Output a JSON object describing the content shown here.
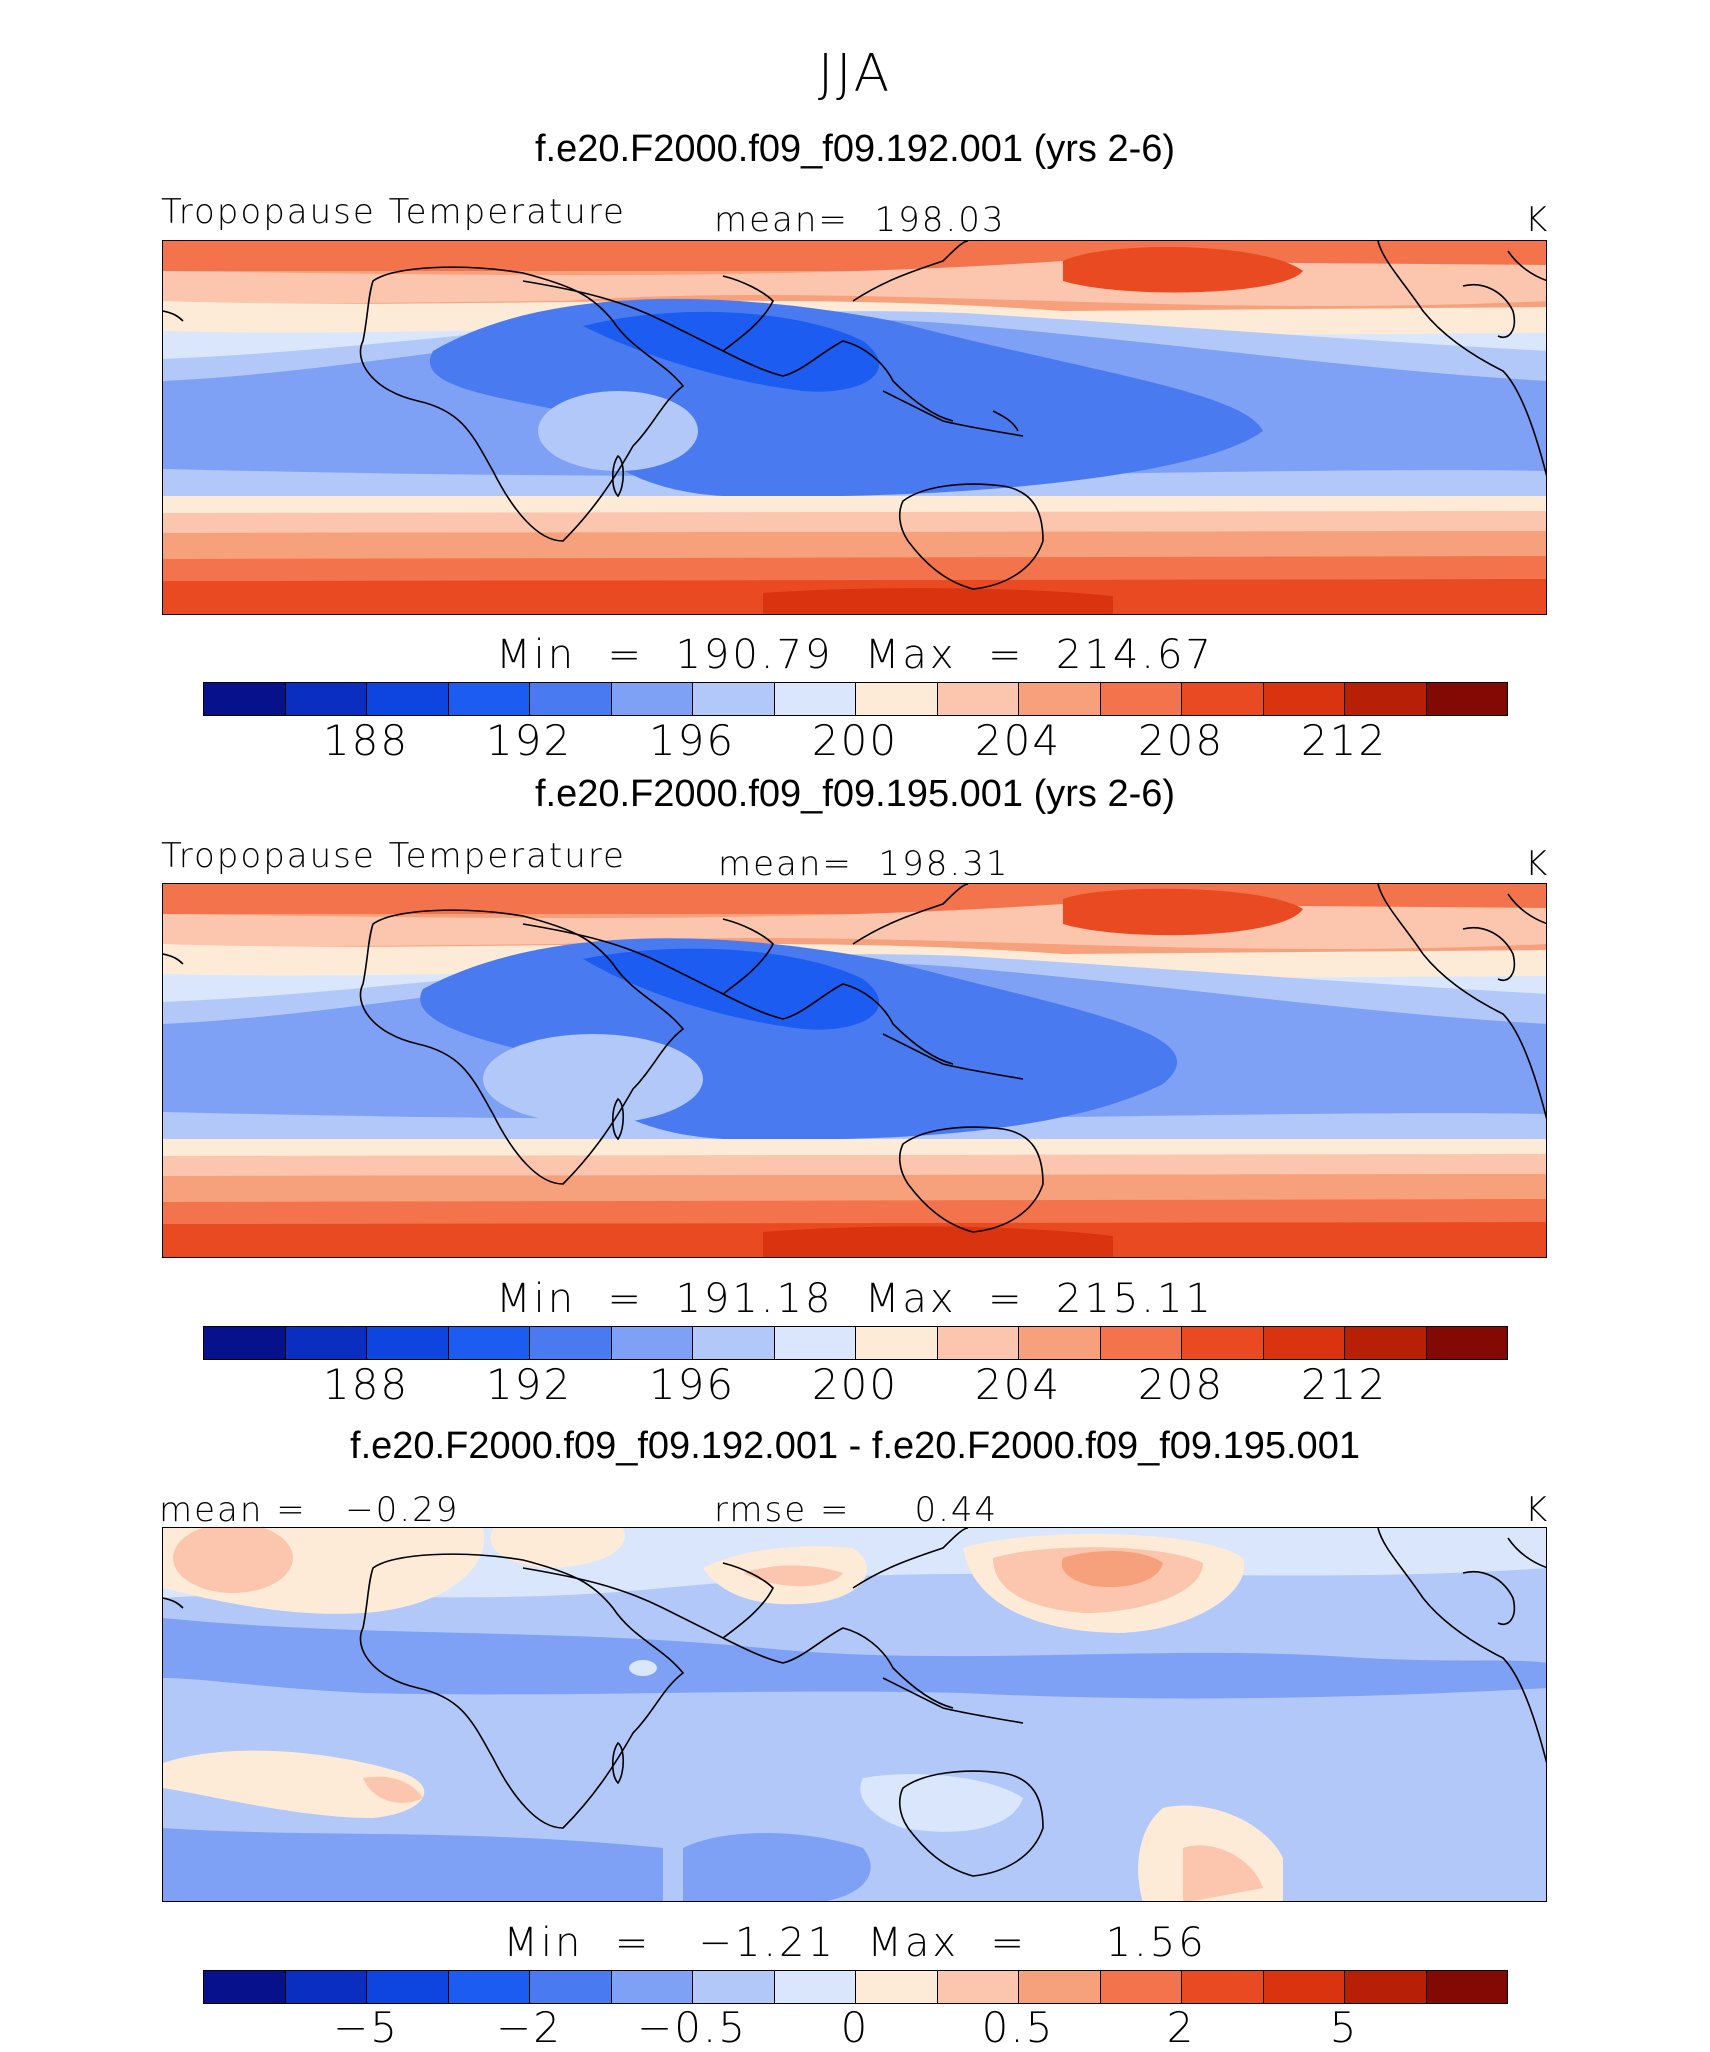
{
  "figure_title": "JJA",
  "panels": [
    {
      "case_title": "f.e20.F2000.f09_f09.192.001 (yrs 2-6)",
      "left_label": "Tropopause Temperature",
      "center_label": "mean=  198.03",
      "unit": "K",
      "minmax": "Min  =  190.79  Max  =  214.67",
      "ticks": [
        "188",
        "192",
        "196",
        "200",
        "204",
        "208",
        "212"
      ]
    },
    {
      "case_title": "f.e20.F2000.f09_f09.195.001 (yrs 2-6)",
      "left_label": "Tropopause Temperature",
      "center_label": "mean=  198.31",
      "unit": "K",
      "minmax": "Min  =  191.18  Max  =  215.11",
      "ticks": [
        "188",
        "192",
        "196",
        "200",
        "204",
        "208",
        "212"
      ]
    },
    {
      "case_title": "f.e20.F2000.f09_f09.192.001 - f.e20.F2000.f09_f09.195.001",
      "left_label": "mean =   −0.29",
      "center_label": "rmse =     0.44",
      "unit": "K",
      "minmax": "Min  =   −1.21  Max  =     1.56",
      "ticks": [
        "−5",
        "−2",
        "−0.5",
        "0",
        "0.5",
        "2",
        "5"
      ]
    }
  ],
  "colorbar_colors": [
    "#08118c",
    "#0a2ec0",
    "#0e44e0",
    "#1d5cf0",
    "#4a7af0",
    "#7fa1f5",
    "#b2c8f9",
    "#d9e6fc",
    "#fdebd8",
    "#fbc6ad",
    "#f7a07c",
    "#f2734c",
    "#ea4a22",
    "#d9340f",
    "#b71f07",
    "#830a04"
  ]
}
